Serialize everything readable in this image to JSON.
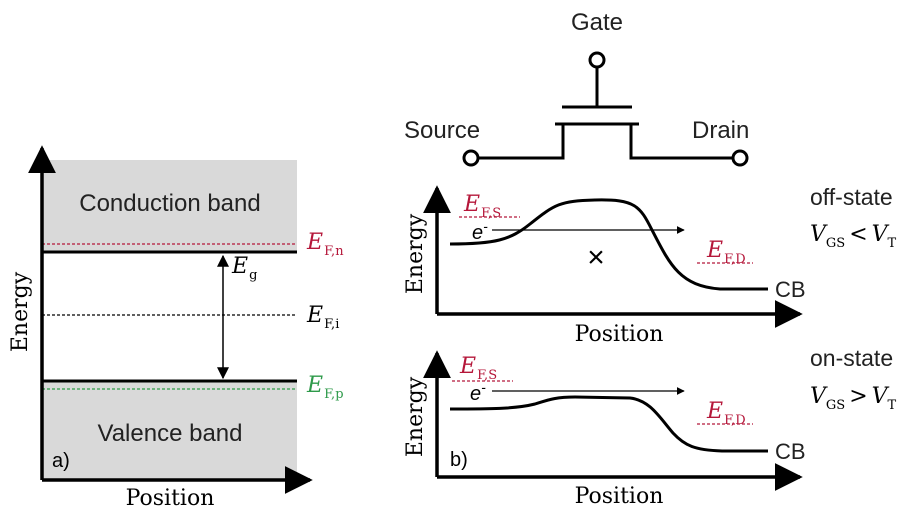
{
  "panel_a": {
    "tag": "a)",
    "conduction_band": "Conduction band",
    "valence_band": "Valence band",
    "axis_x": "Position",
    "axis_y": "Energy",
    "gap": {
      "main": "E",
      "sub": "g"
    },
    "fermi_n": {
      "main": "E",
      "sub": "F,n"
    },
    "fermi_i": {
      "main": "E",
      "sub": "F,i"
    },
    "fermi_p": {
      "main": "E",
      "sub": "F,p"
    },
    "colors": {
      "band_fill": "#d9d9d9",
      "n_type": "#b5173a",
      "p_type": "#2e9a4a"
    }
  },
  "transistor": {
    "gate": "Gate",
    "source": "Source",
    "drain": "Drain"
  },
  "panel_b": {
    "tag": "b)",
    "axis_x": "Position",
    "axis_y": "Energy",
    "cb_label": "CB",
    "electron": "e",
    "electron_sup": "-",
    "fermi_source": {
      "main": "E",
      "sub": "F,S"
    },
    "fermi_drain": {
      "main": "E",
      "sub": "F,D"
    },
    "off_state": {
      "title": "off-state",
      "cond_v1": "V",
      "cond_v1_sub": "GS",
      "cond_op": "<",
      "cond_v2": "V",
      "cond_v2_sub": "T"
    },
    "on_state": {
      "title": "on-state",
      "cond_v1": "V",
      "cond_v1_sub": "GS",
      "cond_op": ">",
      "cond_v2": "V",
      "cond_v2_sub": "T"
    },
    "blocked_symbol": "×"
  }
}
